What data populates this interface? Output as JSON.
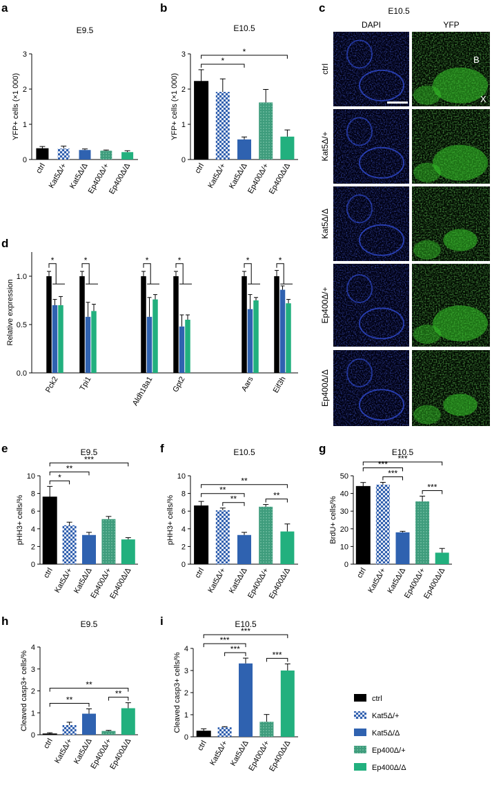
{
  "palette": {
    "ctrl": "#000000",
    "kat5_het": "#2f5fae",
    "kat5_hom": "#2f62b0",
    "ep400_het": "#3e9c7c",
    "ep400_hom": "#22b07e",
    "dapi": "#1a2fd0",
    "yfp": "#3ad02c"
  },
  "groups": [
    "ctrl",
    "Kat5Δ/+",
    "Kat5Δ/Δ",
    "Ep400Δ/+",
    "Ep400Δ/Δ"
  ],
  "legend": {
    "position": "bottom-right",
    "items": [
      "ctrl",
      "Kat5Δ/+",
      "Kat5Δ/Δ",
      "Ep400Δ/+",
      "Ep400Δ/Δ"
    ]
  },
  "panel_c": {
    "label": "c",
    "title": "E10.5",
    "col_headers": [
      "DAPI",
      "YFP"
    ],
    "row_labels": [
      "ctrl",
      "Kat5Δ/+",
      "Kat5Δ/Δ",
      "Ep400Δ/+",
      "Ep400Δ/Δ"
    ],
    "annotations": [
      "B",
      "X"
    ]
  },
  "chart_data": [
    {
      "id": "a",
      "label": "a",
      "type": "bar",
      "title": "E9.5",
      "ylabel": "YFP+ cells (×1 000)",
      "ylim": [
        0,
        3
      ],
      "yticks": [
        0,
        1,
        2,
        3
      ],
      "categories": [
        "ctrl",
        "Kat5Δ/+",
        "Kat5Δ/Δ",
        "Ep400Δ/+",
        "Ep400Δ/Δ"
      ],
      "values": [
        0.31,
        0.31,
        0.27,
        0.25,
        0.21
      ],
      "errors": [
        0.06,
        0.07,
        0.03,
        0.02,
        0.04
      ],
      "significance": []
    },
    {
      "id": "b",
      "label": "b",
      "type": "bar",
      "title": "E10.5",
      "ylabel": "YFP+ cells (×1 000)",
      "ylim": [
        0,
        3
      ],
      "yticks": [
        0,
        1,
        2,
        3
      ],
      "categories": [
        "ctrl",
        "Kat5Δ/+",
        "Kat5Δ/Δ",
        "Ep400Δ/+",
        "Ep400Δ/Δ"
      ],
      "values": [
        2.22,
        1.92,
        0.57,
        1.62,
        0.65
      ],
      "errors": [
        0.33,
        0.37,
        0.07,
        0.37,
        0.19
      ],
      "significance": [
        {
          "from": 0,
          "to": 4,
          "label": "*"
        },
        {
          "from": 0,
          "to": 2,
          "label": "*"
        }
      ]
    },
    {
      "id": "d",
      "label": "d",
      "type": "bar",
      "title": "",
      "ylabel": "Relative expression",
      "ylim": [
        0,
        1.25
      ],
      "yticks": [
        0.0,
        0.5,
        1.0
      ],
      "categories": [
        "Pck2",
        "Tpi1",
        "Aldh18a1",
        "Gpt2",
        "Aars",
        "Eif3h"
      ],
      "series": [
        {
          "values": [
            1.0,
            1.0,
            1.0,
            1.0,
            1.0,
            1.0
          ],
          "errors": [
            0.05,
            0.05,
            0.05,
            0.05,
            0.05,
            0.06
          ]
        },
        {
          "values": [
            0.7,
            0.58,
            0.58,
            0.48,
            0.66,
            0.86
          ],
          "errors": [
            0.06,
            0.15,
            0.2,
            0.12,
            0.15,
            0.04
          ]
        },
        {
          "values": [
            0.7,
            0.64,
            0.76,
            0.55,
            0.75,
            0.72
          ],
          "errors": [
            0.09,
            0.07,
            0.05,
            0.05,
            0.03,
            0.04
          ]
        }
      ],
      "significance_marks": [
        "*",
        "*",
        "*",
        "*",
        "*",
        "*"
      ]
    },
    {
      "id": "e",
      "label": "e",
      "type": "bar",
      "title": "E9.5",
      "ylabel": "pHH3+ cells/%",
      "ylim": [
        0,
        10
      ],
      "yticks": [
        0,
        2,
        4,
        6,
        8,
        10
      ],
      "categories": [
        "ctrl",
        "Kat5Δ/+",
        "Kat5Δ/Δ",
        "Ep400Δ/+",
        "Ep400Δ/Δ"
      ],
      "values": [
        7.6,
        4.4,
        3.3,
        5.1,
        2.8
      ],
      "errors": [
        1.2,
        0.35,
        0.3,
        0.3,
        0.2
      ],
      "significance": [
        {
          "from": 0,
          "to": 4,
          "label": "***"
        },
        {
          "from": 0,
          "to": 2,
          "label": "**"
        },
        {
          "from": 0,
          "to": 1,
          "label": "*"
        }
      ]
    },
    {
      "id": "f",
      "label": "f",
      "type": "bar",
      "title": "E10.5",
      "ylabel": "pHH3+ cells/%",
      "ylim": [
        0,
        10
      ],
      "yticks": [
        0,
        2,
        4,
        6,
        8,
        10
      ],
      "categories": [
        "ctrl",
        "Kat5Δ/+",
        "Kat5Δ/Δ",
        "Ep400Δ/+",
        "Ep400Δ/Δ"
      ],
      "values": [
        6.6,
        6.1,
        3.3,
        6.5,
        3.7
      ],
      "errors": [
        0.5,
        0.25,
        0.3,
        0.25,
        0.85
      ],
      "significance": [
        {
          "from": 0,
          "to": 4,
          "label": "**"
        },
        {
          "from": 0,
          "to": 2,
          "label": "**"
        },
        {
          "from": 1,
          "to": 2,
          "label": "**"
        },
        {
          "from": 3,
          "to": 4,
          "label": "**"
        }
      ]
    },
    {
      "id": "g",
      "label": "g",
      "type": "bar",
      "title": "E10.5",
      "ylabel": "BrdU+ cells/%",
      "ylim": [
        0,
        50
      ],
      "yticks": [
        0,
        10,
        20,
        30,
        40,
        50
      ],
      "categories": [
        "ctrl",
        "Kat5Δ/+",
        "Kat5Δ/Δ",
        "Ep400Δ/+",
        "Ep400Δ/Δ"
      ],
      "values": [
        44,
        45,
        18,
        35.5,
        6.5
      ],
      "errors": [
        2.2,
        1.3,
        0.6,
        3.0,
        2.4
      ],
      "significance": [
        {
          "from": 0,
          "to": 4,
          "label": "***"
        },
        {
          "from": 0,
          "to": 2,
          "label": "***"
        },
        {
          "from": 1,
          "to": 2,
          "label": "***"
        },
        {
          "from": 3,
          "to": 4,
          "label": "***"
        }
      ]
    },
    {
      "id": "h",
      "label": "h",
      "type": "bar",
      "title": "E9.5",
      "ylabel": "Cleaved casp3+ cells/%",
      "ylim": [
        0,
        4
      ],
      "yticks": [
        0,
        1,
        2,
        3,
        4
      ],
      "categories": [
        "ctrl",
        "Kat5Δ/+",
        "Kat5Δ/Δ",
        "Ep400Δ/+",
        "Ep400Δ/Δ"
      ],
      "values": [
        0.04,
        0.44,
        0.96,
        0.17,
        1.21
      ],
      "errors": [
        0.05,
        0.13,
        0.22,
        0.03,
        0.25
      ],
      "significance": [
        {
          "from": 0,
          "to": 4,
          "label": "**"
        },
        {
          "from": 0,
          "to": 2,
          "label": "**"
        },
        {
          "from": 3,
          "to": 4,
          "label": "**"
        }
      ]
    },
    {
      "id": "i",
      "label": "i",
      "type": "bar",
      "title": "E10.5",
      "ylabel": "Cleaved casp3+ cells/%",
      "ylim": [
        0,
        4
      ],
      "yticks": [
        0,
        1,
        2,
        3,
        4
      ],
      "categories": [
        "ctrl",
        "Kat5Δ/+",
        "Kat5Δ/Δ",
        "Ep400Δ/+",
        "Ep400Δ/Δ"
      ],
      "values": [
        0.26,
        0.43,
        3.32,
        0.68,
        3.0
      ],
      "errors": [
        0.1,
        0.03,
        0.24,
        0.33,
        0.3
      ],
      "significance": [
        {
          "from": 0,
          "to": 4,
          "label": "***"
        },
        {
          "from": 0,
          "to": 2,
          "label": "***"
        },
        {
          "from": 1,
          "to": 2,
          "label": "***"
        },
        {
          "from": 3,
          "to": 4,
          "label": "***"
        }
      ]
    }
  ]
}
